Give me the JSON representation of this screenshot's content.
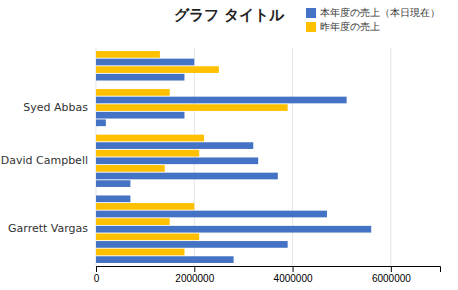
{
  "chart_data": {
    "type": "bar",
    "orientation": "horizontal",
    "title": "グラフ タイトル",
    "categories": [
      null,
      "Syed Abbas",
      "David Campbell",
      "Garrett Vargas"
    ],
    "values": [
      [
        1800000,
        2500000,
        2000000,
        1300000
      ],
      [
        200000,
        1800000,
        3900000,
        5100000,
        1500000
      ],
      [
        700000,
        3700000,
        1400000,
        3300000,
        2100000,
        3200000,
        2200000
      ],
      [
        2800000,
        1800000,
        3900000,
        2100000,
        5600000,
        1500000,
        4700000,
        2000000,
        700000
      ]
    ],
    "colors": [
      [
        "#4472C4",
        "#FFC000",
        "#4472C4",
        "#FFC000"
      ],
      [
        "#4472C4",
        "#4472C4",
        "#FFC000",
        "#4472C4",
        "#FFC000"
      ],
      [
        "#4472C4",
        "#4472C4",
        "#FFC000",
        "#4472C4",
        "#FFC000",
        "#4472C4",
        "#FFC000"
      ],
      [
        "#4472C4",
        "#FFC000",
        "#4472C4",
        "#FFC000",
        "#4472C4",
        "#FFC000",
        "#4472C4",
        "#FFC000",
        "#4472C4"
      ]
    ],
    "series": [
      {
        "name": "本年度の売上（本日現在）",
        "color": "#4472C4"
      },
      {
        "name": "昨年度の売上",
        "color": "#FFC000"
      }
    ],
    "xlim": [
      0,
      7000000
    ],
    "xticks": [
      0,
      2000000,
      4000000,
      6000000
    ],
    "grid": true,
    "legend": "upper right"
  }
}
